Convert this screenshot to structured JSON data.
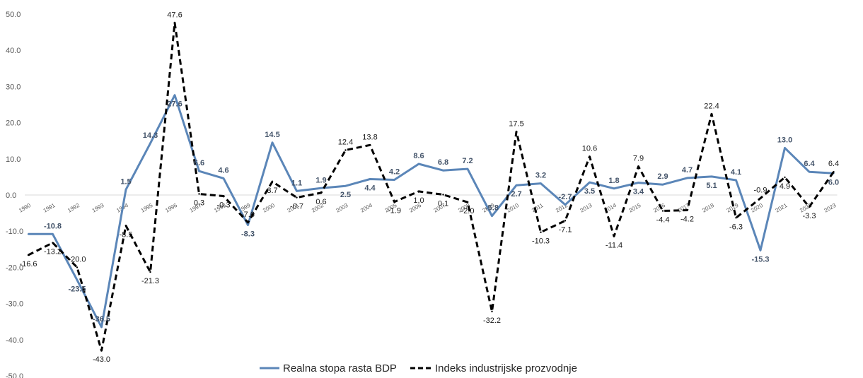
{
  "chart_data": {
    "type": "line",
    "title": "",
    "xlabel": "",
    "ylabel": "",
    "ylim": [
      -50,
      50
    ],
    "yticks": [
      "50.0",
      "40.0",
      "30.0",
      "20.0",
      "10.0",
      "0.0",
      "-10.0",
      "-20.0",
      "-30.0",
      "-40.0",
      "-50.0"
    ],
    "ytick_values": [
      50,
      40,
      30,
      20,
      10,
      0,
      -10,
      -20,
      -30,
      -40,
      -50
    ],
    "categories": [
      "1990",
      "1991",
      "1992",
      "1993",
      "1994",
      "1995",
      "1996",
      "1997",
      "1998",
      "1999",
      "2000",
      "2001",
      "2002",
      "2003",
      "2004",
      "2005",
      "2006",
      "2007",
      "2008",
      "2009",
      "2010",
      "2011",
      "2012",
      "2013",
      "2014",
      "2015",
      "2016",
      "2017",
      "2018",
      "2019",
      "2020",
      "2021",
      "2022",
      "2023"
    ],
    "grid": false,
    "legend_position": "bottom",
    "series": [
      {
        "name": "Realna stopa rasta BDP",
        "color": "#5b86b8",
        "style": "solid",
        "values": [
          -10.8,
          -10.8,
          -23.5,
          -36.5,
          1.5,
          14.3,
          27.6,
          6.6,
          4.6,
          -8.3,
          14.5,
          1.1,
          1.9,
          2.5,
          4.4,
          4.2,
          8.6,
          6.8,
          7.2,
          -5.8,
          2.7,
          3.2,
          -2.7,
          3.5,
          1.8,
          3.4,
          2.9,
          4.7,
          5.1,
          4.1,
          -15.3,
          13.0,
          6.4,
          6.0
        ],
        "labels": [
          "",
          "-10.8",
          "-23.5",
          "-36.5",
          "1.5",
          "14.3",
          "27.6",
          "6.6",
          "4.6",
          "-8.3",
          "14.5",
          "1.1",
          "1.9",
          "2.5",
          "4.4",
          "4.2",
          "8.6",
          "6.8",
          "7.2",
          "-5.8",
          "2.7",
          "3.2",
          "-2.7",
          "3.5",
          "1.8",
          "3.4",
          "2.9",
          "4.7",
          "5.1",
          "4.1",
          "-15.3",
          "13.0",
          "6.4",
          "6.0"
        ]
      },
      {
        "name": "Indeks industrijske prozvodnje",
        "color": "#000000",
        "style": "dashed",
        "values": [
          -16.6,
          -13.2,
          -20.0,
          -43.0,
          -8.5,
          -21.3,
          47.6,
          0.3,
          -0.3,
          -7.6,
          3.7,
          -0.7,
          0.6,
          12.4,
          13.8,
          -1.9,
          1.0,
          0.1,
          -2.0,
          -32.2,
          17.5,
          -10.3,
          -7.1,
          10.6,
          -11.4,
          7.9,
          -4.4,
          -4.2,
          22.4,
          -6.3,
          -0.9,
          4.9,
          -3.3,
          6.4
        ],
        "labels": [
          "-16.6",
          "-13.2",
          "-20.0",
          "-43.0",
          "-8.5",
          "-21.3",
          "47.6",
          "0.3",
          "-0.3",
          "-7.6",
          "3.7",
          "-0.7",
          "0.6",
          "12.4",
          "13.8",
          "-1.9",
          "1.0",
          "0.1",
          "-2.0",
          "-32.2",
          "17.5",
          "-10.3",
          "-7.1",
          "10.6",
          "-11.4",
          "7.9",
          "-4.4",
          "-4.2",
          "22.4",
          "-6.3",
          "-0.9",
          "4.9",
          "-3.3",
          "6.4"
        ]
      }
    ]
  }
}
